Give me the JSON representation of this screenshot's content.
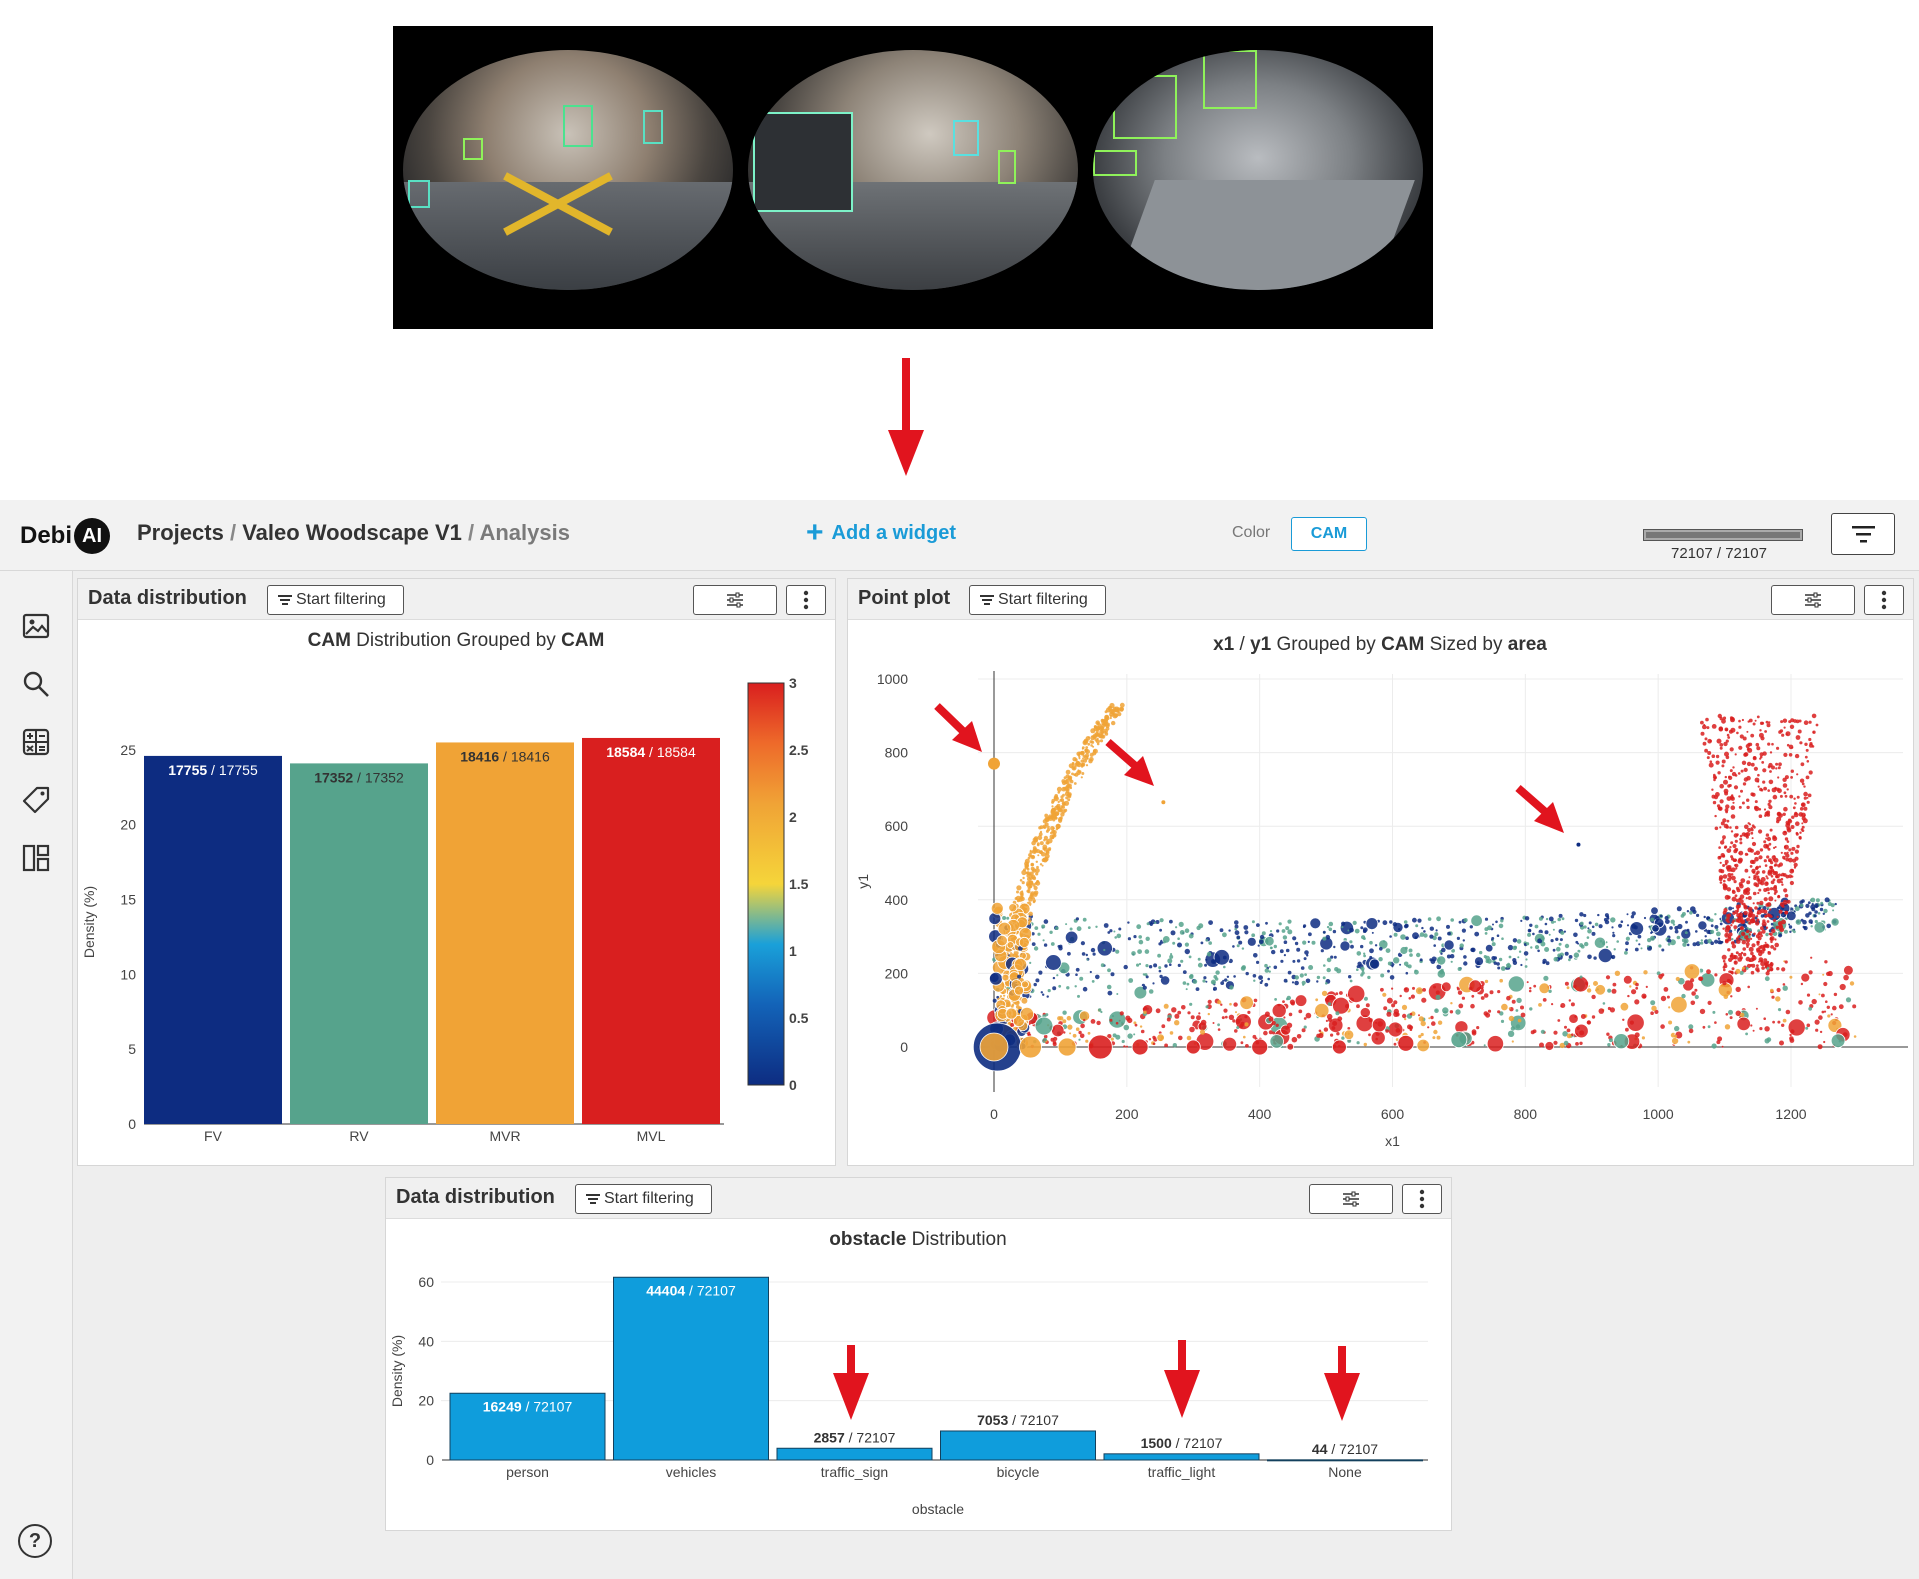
{
  "app": {
    "logo_text": "Debi",
    "logo_badge": "AI",
    "breadcrumb": {
      "projects": "Projects",
      "sep1": "/",
      "project": "Valeo Woodscape V1",
      "sep2": "/",
      "page": "Analysis"
    },
    "add_widget_label": "Add a widget",
    "color_label": "Color",
    "color_value": "CAM",
    "sample_count": "72107 / 72107",
    "accent_color": "#1a9bd7"
  },
  "sidebar": {
    "items": [
      {
        "icon": "image-icon"
      },
      {
        "icon": "search-icon"
      },
      {
        "icon": "calculator-icon"
      },
      {
        "icon": "tag-icon"
      },
      {
        "icon": "dashboard-icon"
      },
      {
        "icon": "help-icon",
        "label": "?"
      }
    ]
  },
  "widgets": {
    "dist1": {
      "title": "Data distribution",
      "filter_label": "Start filtering"
    },
    "pointplot": {
      "title": "Point plot",
      "filter_label": "Start filtering"
    },
    "dist2": {
      "title": "Data distribution",
      "filter_label": "Start filtering"
    }
  },
  "chart_data": [
    {
      "type": "bar",
      "title_parts": [
        "CAM",
        " Distribution Grouped by ",
        "CAM"
      ],
      "categories": [
        "FV",
        "RV",
        "MVR",
        "MVL"
      ],
      "values": [
        24.6,
        24.1,
        25.5,
        25.8
      ],
      "labels": [
        {
          "bold": "17755",
          "rest": " / 17755"
        },
        {
          "bold": "17352",
          "rest": " / 17352"
        },
        {
          "bold": "18416",
          "rest": " / 18416"
        },
        {
          "bold": "18584",
          "rest": " / 18584"
        }
      ],
      "colors": [
        "#0d2c81",
        "#56a38c",
        "#f0a336",
        "#d91f1f"
      ],
      "xlabel": "CAM",
      "ylabel": "Density (%)",
      "yticks": [
        "0",
        "5",
        "10",
        "15",
        "20",
        "25"
      ],
      "ylim": [
        0,
        27
      ],
      "colorbar_ticks": [
        "0",
        "0.5",
        "1",
        "1.5",
        "2",
        "2.5",
        "3"
      ],
      "colorbar_range": [
        0,
        3
      ]
    },
    {
      "type": "scatter",
      "title_parts": [
        "x1",
        " / ",
        "y1",
        " Grouped by ",
        "CAM",
        " Sized by ",
        "area"
      ],
      "xlabel": "x1",
      "ylabel": "y1",
      "xticks": [
        "0",
        "200",
        "400",
        "600",
        "800",
        "1000",
        "1200"
      ],
      "yticks": [
        "0",
        "200",
        "400",
        "600",
        "800",
        "1000"
      ],
      "xlim": [
        0,
        1350
      ],
      "ylim": [
        -10,
        1000
      ],
      "series_colors": [
        "#0d2c81",
        "#56a38c",
        "#f0a336",
        "#d91f1f"
      ],
      "highlights": [
        {
          "x": 0,
          "y": 770,
          "color": "#f0a336"
        },
        {
          "x": 255,
          "y": 665,
          "color": "#f0a336"
        },
        {
          "x": 880,
          "y": 550,
          "color": "#0d2c81"
        }
      ]
    },
    {
      "type": "bar",
      "title_parts": [
        "obstacle",
        " Distribution"
      ],
      "categories": [
        "person",
        "vehicles",
        "traffic_sign",
        "bicycle",
        "traffic_light",
        "None"
      ],
      "values": [
        22.5,
        61.6,
        3.96,
        9.78,
        2.08,
        0.06
      ],
      "labels": [
        {
          "bold": "16249",
          "rest": " / 72107"
        },
        {
          "bold": "44404",
          "rest": " / 72107"
        },
        {
          "bold": "2857",
          "rest": " / 72107"
        },
        {
          "bold": "7053",
          "rest": " / 72107"
        },
        {
          "bold": "1500",
          "rest": " / 72107"
        },
        {
          "bold": "44",
          "rest": " / 72107"
        }
      ],
      "color": "#0f9ddc",
      "xlabel": "obstacle",
      "ylabel": "Density (%)",
      "yticks": [
        "0",
        "20",
        "40",
        "60"
      ],
      "ylim": [
        0,
        63
      ]
    }
  ]
}
